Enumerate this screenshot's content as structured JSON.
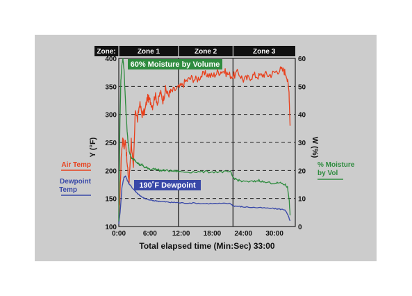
{
  "chart_data": {
    "type": "line",
    "xlabel": "Total elapsed time (Min:Sec) 33:00",
    "ylabel_left": "Y (°F)",
    "ylabel_right": "W (%)",
    "y_left_range": [
      100,
      400
    ],
    "y_right_range": [
      0,
      60
    ],
    "x_range_minutes": [
      0,
      34
    ],
    "y_left_ticks": [
      "100",
      "150",
      "200",
      "250",
      "300",
      "350",
      "400"
    ],
    "y_right_ticks": [
      "0",
      "10",
      "20",
      "30",
      "40",
      "50",
      "60"
    ],
    "x_ticks": [
      {
        "label": "0:00",
        "value": 0
      },
      {
        "label": "6:00",
        "value": 6
      },
      {
        "label": "12:00",
        "value": 12
      },
      {
        "label": "18:00",
        "value": 18
      },
      {
        "label": "24:00",
        "value": 24
      },
      {
        "label": "30:00",
        "value": 30
      }
    ],
    "zones": {
      "header": "Zone:",
      "items": [
        {
          "label": "Zone 1",
          "start": 0,
          "end": 11.5
        },
        {
          "label": "Zone 2",
          "start": 11.5,
          "end": 22.0
        },
        {
          "label": "Zone 3",
          "start": 22.0,
          "end": 34.0
        }
      ]
    },
    "dashed_grid_y_left": [
      150,
      200,
      250,
      300,
      350
    ],
    "annotations": [
      {
        "text": "60% Moisture by Volume",
        "color": "#2e8b3e"
      },
      {
        "text": "190˚F Dewpoint",
        "color": "#3848a8"
      }
    ],
    "series": [
      {
        "name": "Air Temp",
        "axis": "left",
        "color": "#e8401c",
        "x": [
          0,
          0.2,
          0.5,
          0.8,
          1.0,
          1.3,
          1.6,
          2.0,
          2.4,
          2.8,
          3.2,
          3.6,
          4.0,
          4.5,
          5.0,
          5.5,
          6.0,
          6.5,
          7.0,
          7.5,
          8.0,
          8.5,
          9.0,
          9.5,
          10.0,
          11.0,
          12.0,
          13.0,
          14.0,
          15.0,
          16.0,
          17.0,
          18.0,
          19.0,
          20.0,
          21.0,
          22.0,
          23.0,
          24.0,
          25.0,
          26.0,
          27.0,
          28.0,
          29.0,
          30.0,
          31.0,
          31.8,
          32.3,
          32.8,
          33.0
        ],
        "y": [
          110,
          150,
          230,
          260,
          240,
          255,
          210,
          180,
          255,
          200,
          310,
          290,
          320,
          300,
          305,
          330,
          325,
          315,
          335,
          320,
          340,
          325,
          345,
          335,
          340,
          345,
          350,
          360,
          365,
          362,
          370,
          372,
          368,
          375,
          378,
          372,
          368,
          375,
          362,
          365,
          370,
          368,
          372,
          370,
          375,
          380,
          378,
          372,
          340,
          280
        ]
      },
      {
        "name": "Dewpoint Temp",
        "axis": "left",
        "color": "#3848a8",
        "x": [
          0,
          0.3,
          0.6,
          1.0,
          1.3,
          1.6,
          2.0,
          2.5,
          3.0,
          3.5,
          4.0,
          4.5,
          5.0,
          6.0,
          7.0,
          8.0,
          9.0,
          10.0,
          11.0,
          12.0,
          14.0,
          16.0,
          18.0,
          20.0,
          21.5,
          22.0,
          23.0,
          24.0,
          26.0,
          28.0,
          30.0,
          31.0,
          32.0,
          32.6,
          33.0
        ],
        "y": [
          105,
          130,
          170,
          188,
          190,
          183,
          176,
          170,
          165,
          160,
          156,
          152,
          150,
          147,
          146,
          145,
          144,
          143,
          143,
          142,
          142,
          141,
          141,
          141,
          141,
          137,
          136,
          135,
          134,
          133,
          132,
          131,
          130,
          120,
          110
        ]
      },
      {
        "name": "% Moisture by Vol",
        "axis": "right",
        "color": "#2e8b3e",
        "x": [
          0,
          0.2,
          0.4,
          0.6,
          0.8,
          1.0,
          1.2,
          1.4,
          1.6,
          1.8,
          2.0,
          2.3,
          2.6,
          3.0,
          3.5,
          4.0,
          4.5,
          5.0,
          5.5,
          6.0,
          7.0,
          8.0,
          9.0,
          10.0,
          11.0,
          12.0,
          14.0,
          16.0,
          18.0,
          20.0,
          21.5,
          22.0,
          23.0,
          24.0,
          26.0,
          27.0,
          28.0,
          30.0,
          31.0,
          32.0,
          32.5,
          32.8,
          33.0
        ],
        "y": [
          2,
          35,
          52,
          58,
          60,
          56,
          48,
          40,
          34,
          30,
          27,
          25,
          24,
          24,
          23,
          22,
          22,
          21,
          21,
          20.5,
          20.5,
          20,
          20,
          19.8,
          19.8,
          19.5,
          19.5,
          19.5,
          19.5,
          19.5,
          19.5,
          17.5,
          16.5,
          16,
          16,
          16.5,
          15.8,
          15.5,
          15.5,
          15,
          14,
          10,
          4
        ]
      }
    ]
  },
  "legend": {
    "air_temp_label_1": "Air Temp",
    "dewpoint_label_1": "Dewpoint",
    "dewpoint_label_2": "Temp",
    "moisture_label_1": "% Moisture",
    "moisture_label_2": "by Vol"
  }
}
